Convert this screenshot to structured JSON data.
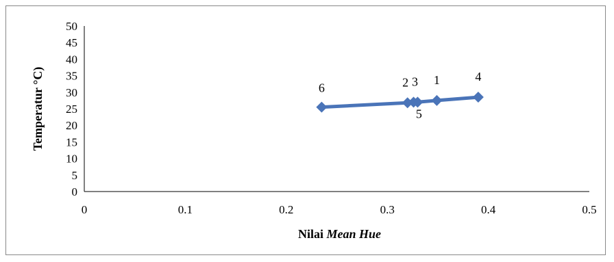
{
  "chart_data": {
    "type": "line",
    "xlabel": "Nilai",
    "xlabel_italic": "Mean Hue",
    "ylabel": "Temperatur °C)",
    "xlim": [
      0,
      0.5
    ],
    "ylim": [
      0,
      50
    ],
    "x_ticks": [
      "0",
      "0.1",
      "0.2",
      "0.3",
      "0.4",
      "0.5"
    ],
    "y_ticks": [
      "0",
      "5",
      "10",
      "15",
      "20",
      "25",
      "30",
      "35",
      "40",
      "45",
      "50"
    ],
    "grid": false,
    "legend": "none",
    "series": [
      {
        "color": "#4a74b8",
        "marker": "diamond",
        "points": [
          {
            "label": "6",
            "x": 0.235,
            "y": 25.5
          },
          {
            "label": "2",
            "x": 0.32,
            "y": 26.8
          },
          {
            "label": "3",
            "x": 0.326,
            "y": 27.0
          },
          {
            "label": "5",
            "x": 0.33,
            "y": 27.0
          },
          {
            "label": "1",
            "x": 0.349,
            "y": 27.5
          },
          {
            "label": "4",
            "x": 0.39,
            "y": 28.5
          }
        ]
      }
    ]
  }
}
